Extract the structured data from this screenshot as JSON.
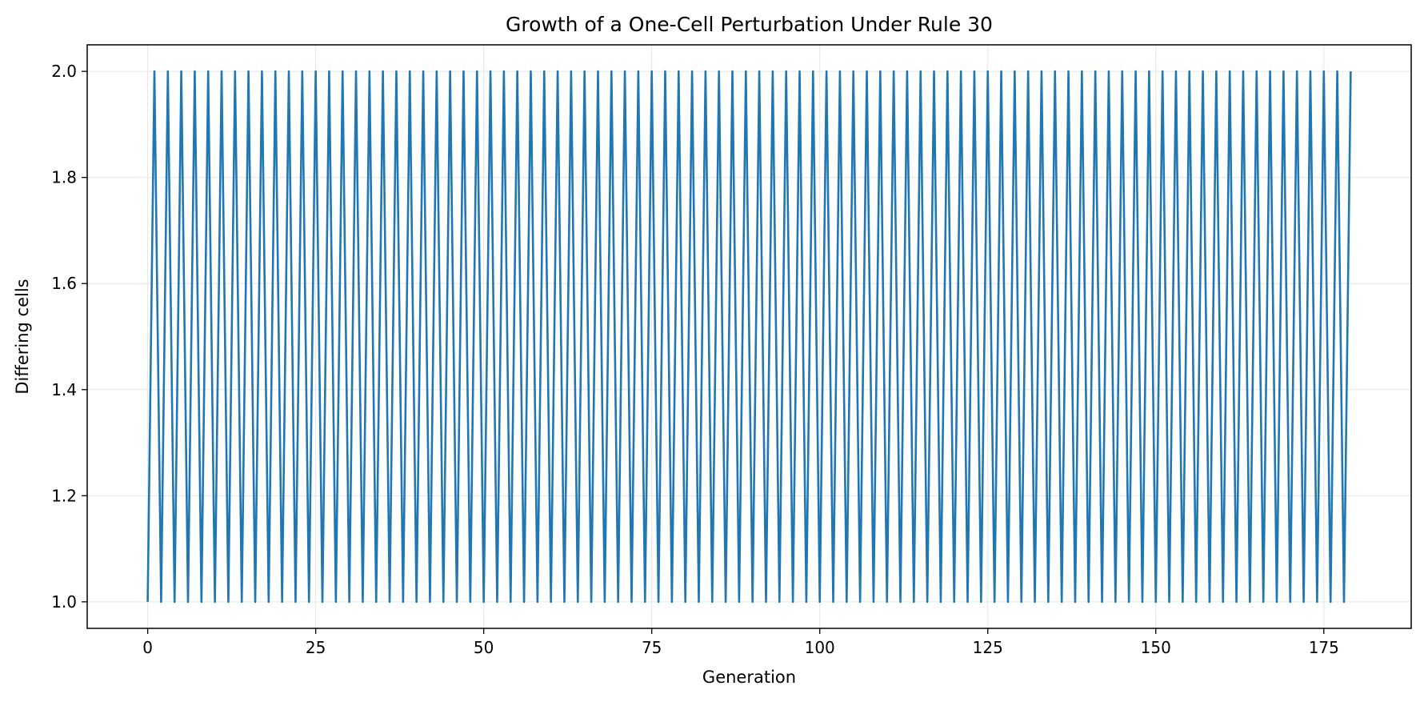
{
  "chart_data": {
    "type": "line",
    "title": "Growth of a One-Cell Perturbation Under Rule 30",
    "xlabel": "Generation",
    "ylabel": "Differing cells",
    "xlim": [
      -9,
      188
    ],
    "ylim": [
      0.95,
      2.05
    ],
    "x_ticks": [
      0,
      25,
      50,
      75,
      100,
      125,
      150,
      175
    ],
    "y_ticks": [
      1.0,
      1.2,
      1.4,
      1.6,
      1.8,
      2.0
    ],
    "x_tick_labels": [
      "0",
      "25",
      "50",
      "75",
      "100",
      "125",
      "150",
      "175"
    ],
    "y_tick_labels": [
      "1.0",
      "1.2",
      "1.4",
      "1.6",
      "1.8",
      "2.0"
    ],
    "grid": true,
    "series": [
      {
        "color": "#1f77b4",
        "x": [
          0,
          1,
          2,
          3,
          4,
          5,
          6,
          7,
          8,
          9,
          10,
          11,
          12,
          13,
          14,
          15,
          16,
          17,
          18,
          19,
          20,
          21,
          22,
          23,
          24,
          25,
          26,
          27,
          28,
          29,
          30,
          31,
          32,
          33,
          34,
          35,
          36,
          37,
          38,
          39,
          40,
          41,
          42,
          43,
          44,
          45,
          46,
          47,
          48,
          49,
          50,
          51,
          52,
          53,
          54,
          55,
          56,
          57,
          58,
          59,
          60,
          61,
          62,
          63,
          64,
          65,
          66,
          67,
          68,
          69,
          70,
          71,
          72,
          73,
          74,
          75,
          76,
          77,
          78,
          79,
          80,
          81,
          82,
          83,
          84,
          85,
          86,
          87,
          88,
          89,
          90,
          91,
          92,
          93,
          94,
          95,
          96,
          97,
          98,
          99,
          100,
          101,
          102,
          103,
          104,
          105,
          106,
          107,
          108,
          109,
          110,
          111,
          112,
          113,
          114,
          115,
          116,
          117,
          118,
          119,
          120,
          121,
          122,
          123,
          124,
          125,
          126,
          127,
          128,
          129,
          130,
          131,
          132,
          133,
          134,
          135,
          136,
          137,
          138,
          139,
          140,
          141,
          142,
          143,
          144,
          145,
          146,
          147,
          148,
          149,
          150,
          151,
          152,
          153,
          154,
          155,
          156,
          157,
          158,
          159,
          160,
          161,
          162,
          163,
          164,
          165,
          166,
          167,
          168,
          169,
          170,
          171,
          172,
          173,
          174,
          175,
          176,
          177,
          178,
          179
        ],
        "y": [
          1,
          2,
          1,
          2,
          1,
          2,
          1,
          2,
          1,
          2,
          1,
          2,
          1,
          2,
          1,
          2,
          1,
          2,
          1,
          2,
          1,
          2,
          1,
          2,
          1,
          2,
          1,
          2,
          1,
          2,
          1,
          2,
          1,
          2,
          1,
          2,
          1,
          2,
          1,
          2,
          1,
          2,
          1,
          2,
          1,
          2,
          1,
          2,
          1,
          2,
          1,
          2,
          1,
          2,
          1,
          2,
          1,
          2,
          1,
          2,
          1,
          2,
          1,
          2,
          1,
          2,
          1,
          2,
          1,
          2,
          1,
          2,
          1,
          2,
          1,
          2,
          1,
          2,
          1,
          2,
          1,
          2,
          1,
          2,
          1,
          2,
          1,
          2,
          1,
          2,
          1,
          2,
          1,
          2,
          1,
          2,
          1,
          2,
          1,
          2,
          1,
          2,
          1,
          2,
          1,
          2,
          1,
          2,
          1,
          2,
          1,
          2,
          1,
          2,
          1,
          2,
          1,
          2,
          1,
          2,
          1,
          2,
          1,
          2,
          1,
          2,
          1,
          2,
          1,
          2,
          1,
          2,
          1,
          2,
          1,
          2,
          1,
          2,
          1,
          2,
          1,
          2,
          1,
          2,
          1,
          2,
          1,
          2,
          1,
          2,
          1,
          2,
          1,
          2,
          1,
          2,
          1,
          2,
          1,
          2,
          1,
          2,
          1,
          2,
          1,
          2,
          1,
          2,
          1,
          2,
          1,
          2,
          1,
          2,
          1,
          2,
          1,
          2,
          1,
          2
        ]
      }
    ]
  }
}
